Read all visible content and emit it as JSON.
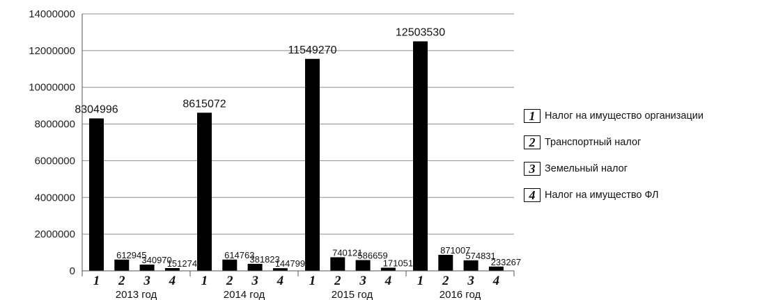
{
  "chart_data": {
    "type": "bar",
    "title": "",
    "xlabel": "",
    "ylabel": "",
    "ylim": [
      0,
      14000000
    ],
    "y_ticks": [
      "0",
      "2000000",
      "4000000",
      "6000000",
      "8000000",
      "10000000",
      "12000000",
      "14000000"
    ],
    "grid": true,
    "legend_position": "right",
    "categories": [
      "2013 год",
      "2014 год",
      "2015 год",
      "2016 год"
    ],
    "bar_numbers": [
      "1",
      "2",
      "3",
      "4"
    ],
    "series": [
      {
        "name": "Налог на имущество организации",
        "values": [
          8304996,
          8615072,
          11549270,
          12503530
        ],
        "labels": [
          "8304996",
          "8615072",
          "11549270",
          "12503530"
        ]
      },
      {
        "name": "Транспортный налог",
        "values": [
          612945,
          614763,
          740121,
          871007
        ],
        "labels": [
          "612945",
          "614763",
          "740121",
          "871007"
        ]
      },
      {
        "name": "Земельный налог",
        "values": [
          340970,
          381823,
          586659,
          574831
        ],
        "labels": [
          "340970",
          "381823",
          "586659",
          "574831"
        ]
      },
      {
        "name": "Налог на имущество ФЛ",
        "values": [
          151274,
          144799,
          171051,
          233267
        ],
        "labels": [
          "151274",
          "144799",
          "171051",
          "233267"
        ]
      }
    ],
    "bar_color": "#000000",
    "grid_color": "#8c8c8c"
  }
}
